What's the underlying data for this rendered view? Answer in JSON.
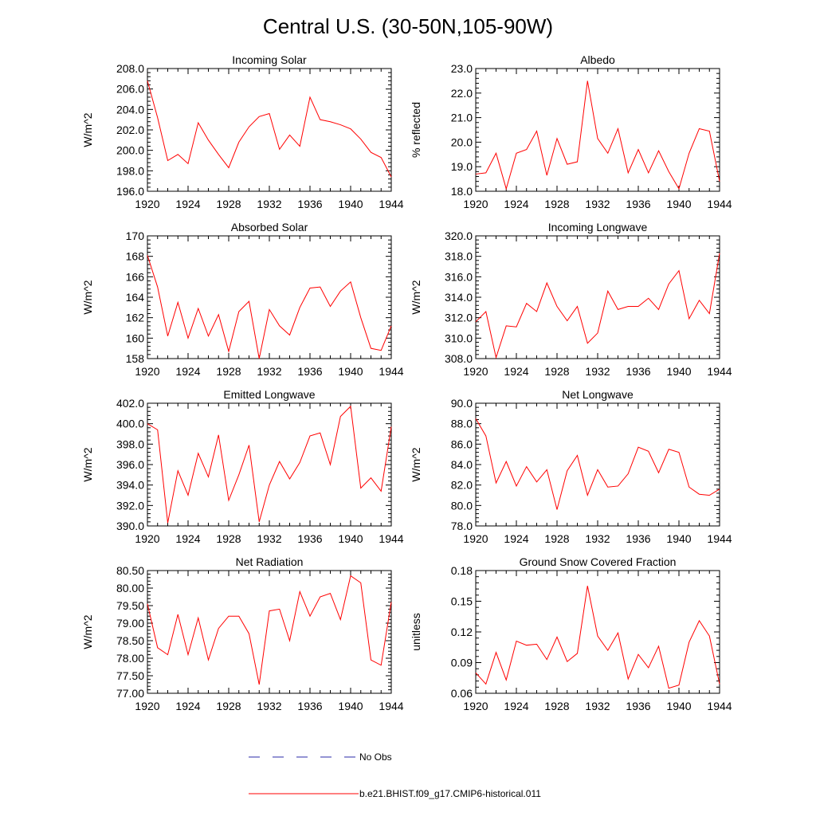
{
  "title": "Central U.S. (30-50N,105-90W)",
  "legend": {
    "obs_label": "No Obs",
    "obs_color": "#2a2aa8",
    "model_label": "b.e21.BHIST.f09_g17.CMIP6-historical.011",
    "model_color": "#ff0000"
  },
  "chart_data": [
    {
      "type": "line",
      "title": "Incoming Solar",
      "ylabel": "W/m^2",
      "xlim": [
        1920,
        1944
      ],
      "ylim": [
        196.0,
        208.0
      ],
      "x_ticks": [
        1920,
        1924,
        1928,
        1932,
        1936,
        1940,
        1944
      ],
      "y_ticks": [
        "196.0",
        "198.0",
        "200.0",
        "202.0",
        "204.0",
        "206.0",
        "208.0"
      ],
      "series": [
        {
          "color": "#ff0000",
          "x": [
            1920,
            1921,
            1922,
            1923,
            1924,
            1925,
            1926,
            1927,
            1928,
            1929,
            1930,
            1931,
            1932,
            1933,
            1934,
            1935,
            1936,
            1937,
            1938,
            1939,
            1940,
            1941,
            1942,
            1943,
            1944
          ],
          "values": [
            206.8,
            203.2,
            199.0,
            199.6,
            198.7,
            202.7,
            201.0,
            199.6,
            198.3,
            200.8,
            202.3,
            203.3,
            203.6,
            200.1,
            201.5,
            200.4,
            205.2,
            203.0,
            202.8,
            202.5,
            202.1,
            201.1,
            199.8,
            199.3,
            197.4
          ]
        }
      ]
    },
    {
      "type": "line",
      "title": "Albedo",
      "ylabel": "% reflected",
      "xlim": [
        1920,
        1944
      ],
      "ylim": [
        18.0,
        23.0
      ],
      "x_ticks": [
        1920,
        1924,
        1928,
        1932,
        1936,
        1940,
        1944
      ],
      "y_ticks": [
        "18.0",
        "19.0",
        "20.0",
        "21.0",
        "22.0",
        "23.0"
      ],
      "series": [
        {
          "color": "#ff0000",
          "x": [
            1920,
            1921,
            1922,
            1923,
            1924,
            1925,
            1926,
            1927,
            1928,
            1929,
            1930,
            1931,
            1932,
            1933,
            1934,
            1935,
            1936,
            1937,
            1938,
            1939,
            1940,
            1941,
            1942,
            1943,
            1944
          ],
          "values": [
            18.7,
            18.75,
            19.55,
            18.1,
            19.55,
            19.7,
            20.45,
            18.65,
            20.15,
            19.1,
            19.2,
            22.5,
            20.15,
            19.55,
            20.55,
            18.75,
            19.7,
            18.75,
            19.65,
            18.8,
            18.1,
            19.55,
            20.55,
            20.45,
            18.4
          ]
        }
      ]
    },
    {
      "type": "line",
      "title": "Absorbed Solar",
      "ylabel": "W/m^2",
      "xlim": [
        1920,
        1944
      ],
      "ylim": [
        158,
        170
      ],
      "x_ticks": [
        1920,
        1924,
        1928,
        1932,
        1936,
        1940,
        1944
      ],
      "y_ticks": [
        "158",
        "160",
        "162",
        "164",
        "166",
        "168",
        "170"
      ],
      "series": [
        {
          "color": "#ff0000",
          "x": [
            1920,
            1921,
            1922,
            1923,
            1924,
            1925,
            1926,
            1927,
            1928,
            1929,
            1930,
            1931,
            1932,
            1933,
            1934,
            1935,
            1936,
            1937,
            1938,
            1939,
            1940,
            1941,
            1942,
            1943,
            1944
          ],
          "values": [
            168.1,
            165.0,
            160.2,
            163.5,
            160.0,
            162.9,
            160.2,
            162.3,
            158.7,
            162.6,
            163.6,
            158.0,
            162.8,
            161.2,
            160.3,
            163.0,
            164.9,
            165.0,
            163.1,
            164.6,
            165.5,
            162.0,
            159.0,
            158.8,
            161.2
          ]
        }
      ]
    },
    {
      "type": "line",
      "title": "Incoming Longwave",
      "ylabel": "W/m^2",
      "xlim": [
        1920,
        1944
      ],
      "ylim": [
        308.0,
        320.0
      ],
      "x_ticks": [
        1920,
        1924,
        1928,
        1932,
        1936,
        1940,
        1944
      ],
      "y_ticks": [
        "308.0",
        "310.0",
        "312.0",
        "314.0",
        "316.0",
        "318.0",
        "320.0"
      ],
      "series": [
        {
          "color": "#ff0000",
          "x": [
            1920,
            1921,
            1922,
            1923,
            1924,
            1925,
            1926,
            1927,
            1928,
            1929,
            1930,
            1931,
            1932,
            1933,
            1934,
            1935,
            1936,
            1937,
            1938,
            1939,
            1940,
            1941,
            1942,
            1943,
            1944
          ],
          "values": [
            311.6,
            312.6,
            308.1,
            311.2,
            311.1,
            313.4,
            312.6,
            315.4,
            313.1,
            311.7,
            313.1,
            309.5,
            310.5,
            314.6,
            312.8,
            313.1,
            313.1,
            313.9,
            312.8,
            315.3,
            316.6,
            311.9,
            313.7,
            312.4,
            318.3
          ]
        }
      ]
    },
    {
      "type": "line",
      "title": "Emitted Longwave",
      "ylabel": "W/m^2",
      "xlim": [
        1920,
        1944
      ],
      "ylim": [
        390.0,
        402.0
      ],
      "x_ticks": [
        1920,
        1924,
        1928,
        1932,
        1936,
        1940,
        1944
      ],
      "y_ticks": [
        "390.0",
        "392.0",
        "394.0",
        "396.0",
        "398.0",
        "400.0",
        "402.0"
      ],
      "series": [
        {
          "color": "#ff0000",
          "x": [
            1920,
            1921,
            1922,
            1923,
            1924,
            1925,
            1926,
            1927,
            1928,
            1929,
            1930,
            1931,
            1932,
            1933,
            1934,
            1935,
            1936,
            1937,
            1938,
            1939,
            1940,
            1941,
            1942,
            1943,
            1944
          ],
          "values": [
            400.0,
            399.4,
            390.3,
            395.4,
            393.0,
            397.1,
            394.8,
            398.9,
            392.5,
            395.0,
            397.9,
            390.4,
            394.0,
            396.3,
            394.6,
            396.2,
            398.8,
            399.1,
            396.0,
            400.7,
            401.7,
            393.7,
            394.7,
            393.4,
            399.7
          ]
        }
      ]
    },
    {
      "type": "line",
      "title": "Net Longwave",
      "ylabel": "W/m^2",
      "xlim": [
        1920,
        1944
      ],
      "ylim": [
        78.0,
        90.0
      ],
      "x_ticks": [
        1920,
        1924,
        1928,
        1932,
        1936,
        1940,
        1944
      ],
      "y_ticks": [
        "78.0",
        "80.0",
        "82.0",
        "84.0",
        "86.0",
        "88.0",
        "90.0"
      ],
      "series": [
        {
          "color": "#ff0000",
          "x": [
            1920,
            1921,
            1922,
            1923,
            1924,
            1925,
            1926,
            1927,
            1928,
            1929,
            1930,
            1931,
            1932,
            1933,
            1934,
            1935,
            1936,
            1937,
            1938,
            1939,
            1940,
            1941,
            1942,
            1943,
            1944
          ],
          "values": [
            88.5,
            86.8,
            82.2,
            84.3,
            81.9,
            83.8,
            82.3,
            83.5,
            79.6,
            83.4,
            84.9,
            81.0,
            83.5,
            81.8,
            81.9,
            83.1,
            85.7,
            85.3,
            83.2,
            85.5,
            85.2,
            81.8,
            81.1,
            81.0,
            81.6
          ]
        }
      ]
    },
    {
      "type": "line",
      "title": "Net Radiation",
      "ylabel": "W/m^2",
      "xlim": [
        1920,
        1944
      ],
      "ylim": [
        77.0,
        80.5
      ],
      "x_ticks": [
        1920,
        1924,
        1928,
        1932,
        1936,
        1940,
        1944
      ],
      "y_ticks": [
        "77.00",
        "77.50",
        "78.00",
        "78.50",
        "79.00",
        "79.50",
        "80.00",
        "80.50"
      ],
      "series": [
        {
          "color": "#ff0000",
          "x": [
            1920,
            1921,
            1922,
            1923,
            1924,
            1925,
            1926,
            1927,
            1928,
            1929,
            1930,
            1931,
            1932,
            1933,
            1934,
            1935,
            1936,
            1937,
            1938,
            1939,
            1940,
            1941,
            1942,
            1943,
            1944
          ],
          "values": [
            79.55,
            78.3,
            78.1,
            79.25,
            78.1,
            79.15,
            77.95,
            78.85,
            79.2,
            79.2,
            78.7,
            77.25,
            79.35,
            79.4,
            78.5,
            79.9,
            79.2,
            79.75,
            79.85,
            79.1,
            80.35,
            80.15,
            77.95,
            77.8,
            79.6
          ]
        }
      ]
    },
    {
      "type": "line",
      "title": "Ground Snow Covered Fraction",
      "ylabel": "unitless",
      "xlim": [
        1920,
        1944
      ],
      "ylim": [
        0.06,
        0.18
      ],
      "x_ticks": [
        1920,
        1924,
        1928,
        1932,
        1936,
        1940,
        1944
      ],
      "y_ticks": [
        "0.06",
        "0.09",
        "0.12",
        "0.15",
        "0.18"
      ],
      "series": [
        {
          "color": "#ff0000",
          "x": [
            1920,
            1921,
            1922,
            1923,
            1924,
            1925,
            1926,
            1927,
            1928,
            1929,
            1930,
            1931,
            1932,
            1933,
            1934,
            1935,
            1936,
            1937,
            1938,
            1939,
            1940,
            1941,
            1942,
            1943,
            1944
          ],
          "values": [
            0.08,
            0.069,
            0.1,
            0.073,
            0.111,
            0.107,
            0.108,
            0.093,
            0.115,
            0.091,
            0.099,
            0.165,
            0.116,
            0.102,
            0.119,
            0.074,
            0.098,
            0.085,
            0.106,
            0.065,
            0.068,
            0.11,
            0.131,
            0.116,
            0.069
          ]
        }
      ]
    }
  ]
}
